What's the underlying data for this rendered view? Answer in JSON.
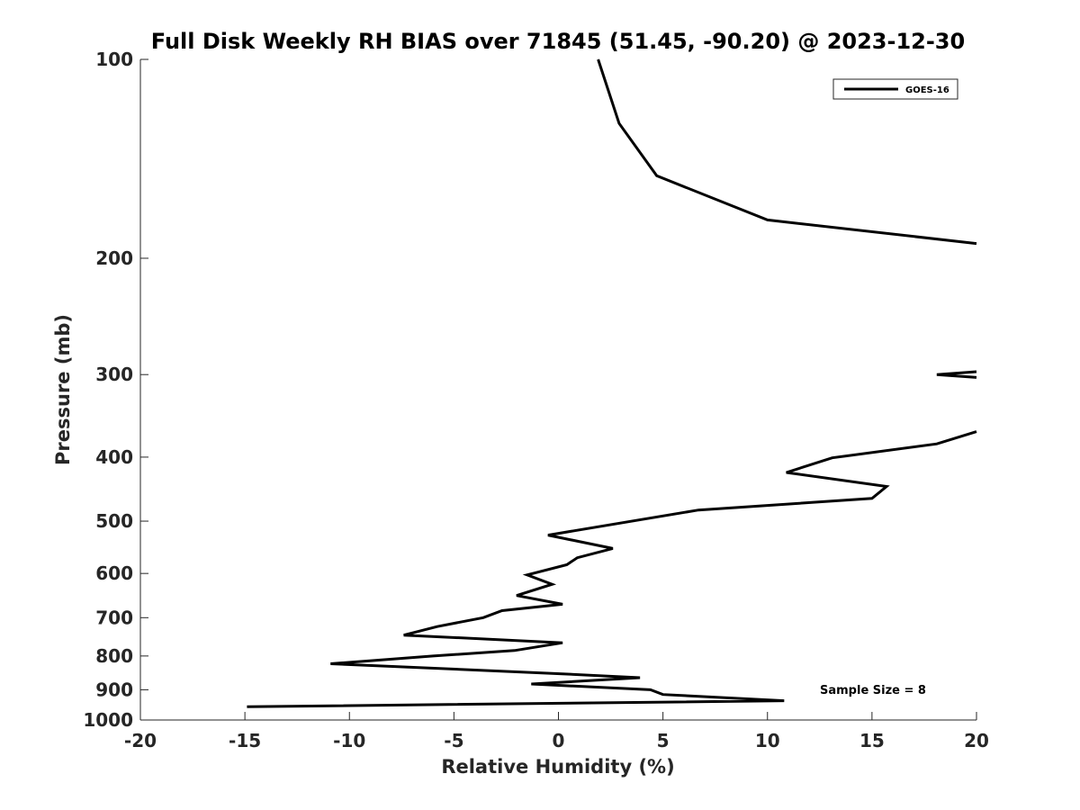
{
  "chart_data": {
    "type": "line",
    "title": "Full Disk Weekly RH BIAS over 71845 (51.45, -90.20) @ 2023-12-30",
    "xlabel": "Relative Humidity (%)",
    "ylabel": "Pressure (mb)",
    "xlim": [
      -20,
      20
    ],
    "ylim": [
      100,
      1000
    ],
    "yscale": "log",
    "y_reversed": true,
    "grid": false,
    "xticks": [
      -20,
      -15,
      -10,
      -5,
      0,
      5,
      10,
      15,
      20
    ],
    "xtick_labels": [
      "-20",
      "-15",
      "-10",
      "-5",
      "0",
      "5",
      "10",
      "15",
      "20"
    ],
    "yticks": [
      100,
      200,
      300,
      400,
      500,
      600,
      700,
      800,
      900,
      1000
    ],
    "ytick_labels": [
      "100",
      "200",
      "300",
      "400",
      "500",
      "600",
      "700",
      "800",
      "900",
      "1000"
    ],
    "legend_position": "top-right",
    "annotation": "Sample Size = 8",
    "colors": {
      "line": "#000000",
      "axis": "#262626",
      "background": "#ffffff"
    },
    "series": [
      {
        "name": "GOES-16",
        "segments": [
          [
            {
              "x": 1.9,
              "y": 100
            },
            {
              "x": 2.9,
              "y": 125
            },
            {
              "x": 4.7,
              "y": 150
            },
            {
              "x": 10.0,
              "y": 175
            },
            {
              "x": 20.0,
              "y": 190
            }
          ],
          [
            {
              "x": 20.0,
              "y": 297
            },
            {
              "x": 18.1,
              "y": 300
            },
            {
              "x": 20.0,
              "y": 303
            }
          ],
          [
            {
              "x": 20.0,
              "y": 366
            },
            {
              "x": 18.1,
              "y": 382
            },
            {
              "x": 13.1,
              "y": 401
            },
            {
              "x": 10.9,
              "y": 422
            },
            {
              "x": 15.7,
              "y": 443
            },
            {
              "x": 15.0,
              "y": 462
            },
            {
              "x": 6.7,
              "y": 481
            },
            {
              "x": -0.5,
              "y": 525
            },
            {
              "x": 2.6,
              "y": 550
            },
            {
              "x": 0.9,
              "y": 568
            },
            {
              "x": 0.4,
              "y": 582
            },
            {
              "x": -1.5,
              "y": 603
            },
            {
              "x": -0.3,
              "y": 623
            },
            {
              "x": -2.0,
              "y": 648
            },
            {
              "x": 0.2,
              "y": 668
            },
            {
              "x": -2.7,
              "y": 683
            },
            {
              "x": -3.6,
              "y": 700
            },
            {
              "x": -5.8,
              "y": 722
            },
            {
              "x": -7.4,
              "y": 744
            },
            {
              "x": 0.2,
              "y": 764
            },
            {
              "x": -2.1,
              "y": 785
            },
            {
              "x": -6.0,
              "y": 800
            },
            {
              "x": -10.9,
              "y": 822
            },
            {
              "x": -0.3,
              "y": 850
            },
            {
              "x": 3.9,
              "y": 863
            },
            {
              "x": -1.3,
              "y": 882
            },
            {
              "x": 4.4,
              "y": 900
            },
            {
              "x": 5.0,
              "y": 915
            },
            {
              "x": 10.8,
              "y": 935
            },
            {
              "x": -14.9,
              "y": 955
            }
          ]
        ]
      }
    ]
  }
}
